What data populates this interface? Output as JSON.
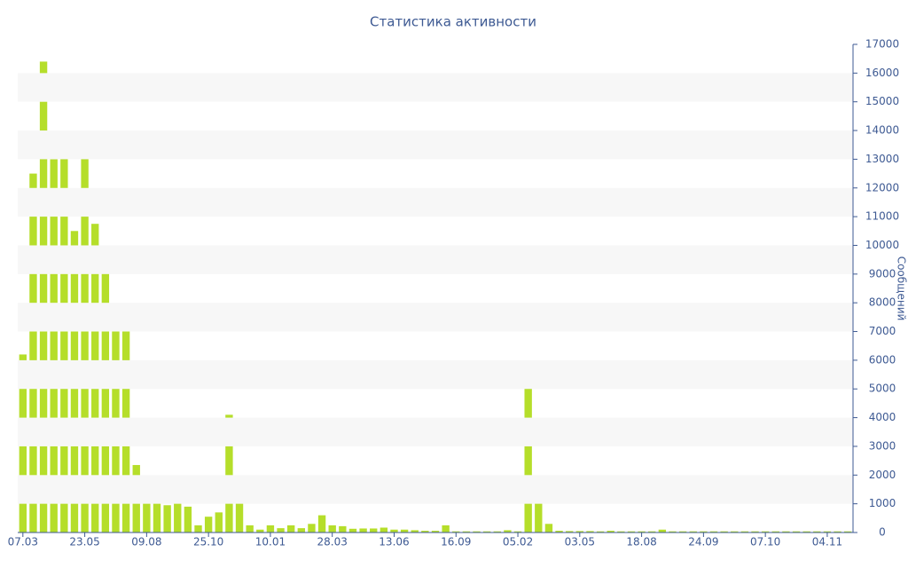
{
  "chart_data": {
    "type": "bar",
    "title": "Статистика активности",
    "y_label": "Сообщений",
    "categories": [
      "07.03",
      null,
      null,
      null,
      null,
      null,
      "23.05",
      null,
      null,
      null,
      null,
      null,
      "09.08",
      null,
      null,
      null,
      null,
      null,
      "25.10",
      null,
      null,
      null,
      null,
      null,
      "10.01",
      null,
      null,
      null,
      null,
      null,
      "28.03",
      null,
      null,
      null,
      null,
      null,
      "13.06",
      null,
      null,
      null,
      null,
      null,
      "16.09",
      null,
      null,
      null,
      null,
      null,
      "05.02",
      null,
      null,
      null,
      null,
      null,
      "03.05",
      null,
      null,
      null,
      null,
      null,
      "18.08",
      null,
      null,
      null,
      null,
      null,
      "24.09",
      null,
      null,
      null,
      null,
      null,
      "07.10",
      null,
      null,
      null,
      null,
      null,
      "04.11",
      null,
      null
    ],
    "values": [
      6200,
      12500,
      16400,
      13000,
      13700,
      10500,
      13600,
      10750,
      9400,
      7550,
      7500,
      2350,
      1500,
      1250,
      950,
      1200,
      900,
      250,
      550,
      700,
      4100,
      1200,
      250,
      100,
      250,
      150,
      250,
      150,
      300,
      600,
      250,
      220,
      130,
      140,
      140,
      170,
      100,
      100,
      80,
      60,
      60,
      250,
      40,
      40,
      40,
      40,
      40,
      80,
      40,
      5100,
      1700,
      300,
      60,
      50,
      50,
      50,
      40,
      60,
      40,
      40,
      40,
      40,
      100,
      40,
      40,
      40,
      40,
      40,
      40,
      40,
      40,
      40,
      40,
      40,
      40,
      40,
      40,
      40,
      40,
      40,
      40
    ],
    "color": "#b5de2a",
    "ylim": [
      0,
      17000
    ],
    "yticks": [
      0,
      1000,
      2000,
      3000,
      4000,
      5000,
      6000,
      7000,
      8000,
      9000,
      10000,
      11000,
      12000,
      13000,
      14000,
      15000,
      16000,
      17000
    ],
    "grid": true
  }
}
